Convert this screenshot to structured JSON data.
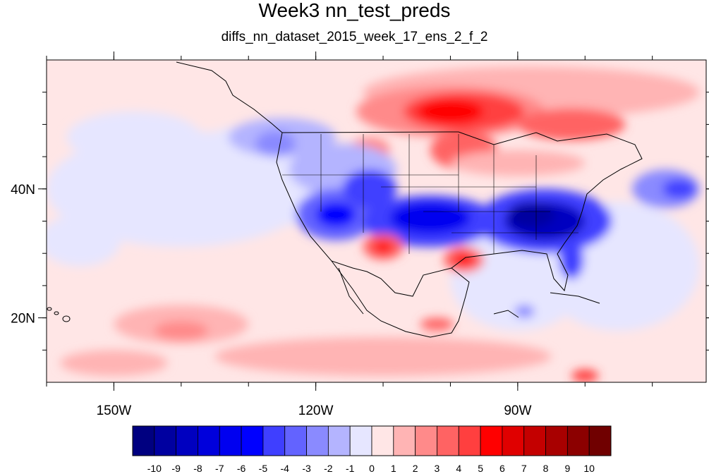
{
  "title": "Week3 nn_test_preds",
  "subtitle": "diffs_nn_dataset_2015_week_17_ens_2_f_2",
  "map": {
    "projection": "cylindrical-equidistant",
    "lon_range": [
      -160,
      -62
    ],
    "lat_range": [
      10,
      60
    ],
    "x_ticks": [
      {
        "value": -150,
        "label": "150W"
      },
      {
        "value": -120,
        "label": "120W"
      },
      {
        "value": -90,
        "label": "90W"
      }
    ],
    "y_ticks": [
      {
        "value": 40,
        "label": "40N"
      },
      {
        "value": 20,
        "label": "20N"
      }
    ]
  },
  "colorbar": {
    "labels": [
      "-10",
      "-9",
      "-8",
      "-7",
      "-6",
      "-5",
      "-4",
      "-3",
      "-2",
      "-1",
      "0",
      "1",
      "2",
      "3",
      "4",
      "5",
      "6",
      "7",
      "8",
      "9",
      "10"
    ],
    "colors": [
      "#000080",
      "#0000a0",
      "#0000c0",
      "#0000dc",
      "#0000f0",
      "#0000ff",
      "#3f3fff",
      "#6363ff",
      "#8a8aff",
      "#b4b4ff",
      "#e6e6ff",
      "#ffe6e6",
      "#ffb4b4",
      "#ff8a8a",
      "#ff6363",
      "#ff3f3f",
      "#ff0000",
      "#e00000",
      "#c40000",
      "#a80000",
      "#8c0000",
      "#700000"
    ]
  },
  "field": {
    "background": "#ffe6e6",
    "blobs": [
      {
        "lon": -140,
        "lat": 40,
        "rlon": 20,
        "rlat": 9,
        "color": "#e6e6ff"
      },
      {
        "lon": -128,
        "lat": 42,
        "rlon": 14,
        "rlat": 8,
        "color": "#e6e6ff"
      },
      {
        "lon": -155,
        "lat": 32,
        "rlon": 6,
        "rlat": 4,
        "color": "#e6e6ff"
      },
      {
        "lon": -125,
        "lat": 48,
        "rlon": 8,
        "rlat": 3,
        "color": "#b4b4ff"
      },
      {
        "lon": -126,
        "lat": 47,
        "rlon": 3,
        "rlat": 2,
        "color": "#8a8aff"
      },
      {
        "lon": -147,
        "lat": 48,
        "rlon": 10,
        "rlat": 4,
        "color": "#e6e6ff"
      },
      {
        "lon": -140,
        "lat": 19,
        "rlon": 10,
        "rlat": 3,
        "color": "#ffb4b4"
      },
      {
        "lon": -140,
        "lat": 18,
        "rlon": 4,
        "rlat": 1.5,
        "color": "#ff8a8a"
      },
      {
        "lon": -110,
        "lat": 14,
        "rlon": 25,
        "rlat": 3,
        "color": "#ffb4b4"
      },
      {
        "lon": -150,
        "lat": 13,
        "rlon": 8,
        "rlat": 2,
        "color": "#ffb4b4"
      },
      {
        "lon": -90,
        "lat": 26,
        "rlon": 10,
        "rlat": 8,
        "color": "#e6e6ff"
      },
      {
        "lon": -75,
        "lat": 28,
        "rlon": 12,
        "rlat": 10,
        "color": "#e6e6ff"
      },
      {
        "lon": -68,
        "lat": 40,
        "rlon": 5,
        "rlat": 3,
        "color": "#8a8aff"
      },
      {
        "lon": -66,
        "lat": 40,
        "rlon": 2.5,
        "rlat": 1.5,
        "color": "#3f3fff"
      },
      {
        "lon": -88,
        "lat": 55,
        "rlon": 25,
        "rlat": 4,
        "color": "#ffb4b4"
      },
      {
        "lon": -100,
        "lat": 52,
        "rlon": 14,
        "rlat": 4,
        "color": "#ff8a8a"
      },
      {
        "lon": -98,
        "lat": 52,
        "rlon": 9,
        "rlat": 3,
        "color": "#ff3f3f"
      },
      {
        "lon": -100,
        "lat": 52,
        "rlon": 5,
        "rlat": 2,
        "color": "#ff0000"
      },
      {
        "lon": -82,
        "lat": 50,
        "rlon": 8,
        "rlat": 2.5,
        "color": "#ff6363"
      },
      {
        "lon": -112,
        "lat": 46,
        "rlon": 3,
        "rlat": 2,
        "color": "#ff8a8a"
      },
      {
        "lon": -98,
        "lat": 46,
        "rlon": 5,
        "rlat": 3,
        "color": "#ff6363"
      },
      {
        "lon": -90,
        "lat": 44,
        "rlon": 10,
        "rlat": 2,
        "color": "#ffb4b4"
      },
      {
        "lon": -116,
        "lat": 43,
        "rlon": 8,
        "rlat": 4,
        "color": "#b4b4ff"
      },
      {
        "lon": -117,
        "lat": 36,
        "rlon": 6,
        "rlat": 4,
        "color": "#6363ff"
      },
      {
        "lon": -117,
        "lat": 36,
        "rlon": 3,
        "rlat": 2,
        "color": "#0000ff"
      },
      {
        "lon": -112,
        "lat": 40,
        "rlon": 4,
        "rlat": 3,
        "color": "#3f3fff"
      },
      {
        "lon": -103,
        "lat": 35,
        "rlon": 10,
        "rlat": 4,
        "color": "#3f3fff"
      },
      {
        "lon": -103,
        "lat": 35.5,
        "rlon": 6,
        "rlat": 2.5,
        "color": "#0000f0"
      },
      {
        "lon": -86,
        "lat": 35,
        "rlon": 10,
        "rlat": 5,
        "color": "#3f3fff"
      },
      {
        "lon": -86,
        "lat": 35,
        "rlon": 6,
        "rlat": 3,
        "color": "#0000c0"
      },
      {
        "lon": -88,
        "lat": 36,
        "rlon": 3.5,
        "rlat": 2,
        "color": "#0000a0"
      },
      {
        "lon": -82,
        "lat": 29,
        "rlon": 1.8,
        "rlat": 3,
        "color": "#3f3fff"
      },
      {
        "lon": -110,
        "lat": 31,
        "rlon": 3,
        "rlat": 2,
        "color": "#ff6363"
      },
      {
        "lon": -110,
        "lat": 31,
        "rlon": 1.5,
        "rlat": 1,
        "color": "#ff0000"
      },
      {
        "lon": -98,
        "lat": 29,
        "rlon": 3,
        "rlat": 2,
        "color": "#ff6363"
      },
      {
        "lon": -98,
        "lat": 29,
        "rlon": 1.5,
        "rlat": 1,
        "color": "#ff0000"
      },
      {
        "lon": -102,
        "lat": 19,
        "rlon": 2.5,
        "rlat": 1,
        "color": "#ff6363"
      },
      {
        "lon": -89,
        "lat": 21,
        "rlon": 1.5,
        "rlat": 1,
        "color": "#8a8aff"
      },
      {
        "lon": -80,
        "lat": 11,
        "rlon": 2,
        "rlat": 1,
        "color": "#ff3f3f"
      }
    ]
  }
}
